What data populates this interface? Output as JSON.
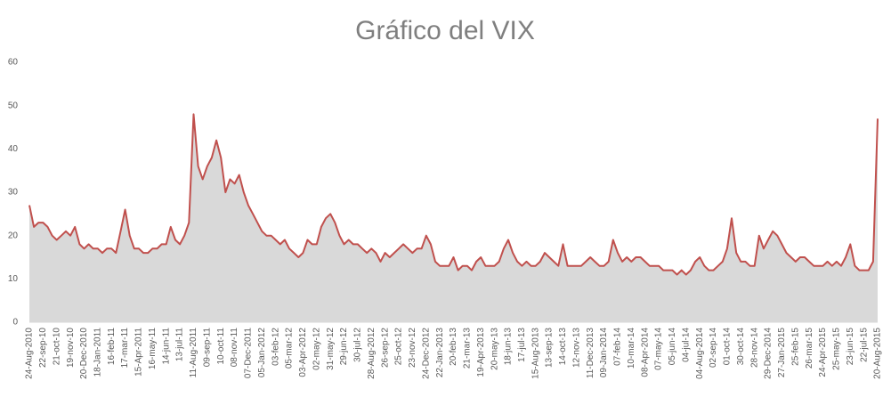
{
  "chart_data": {
    "type": "area_line",
    "title": "Gráfico del VIX",
    "categories": [
      "24-Aug-2010",
      null,
      null,
      "22-sep-10",
      null,
      null,
      "21-oct-10",
      null,
      null,
      "19-nov-10",
      null,
      null,
      "20-Dec-2010",
      null,
      null,
      "18-Jan-2011",
      null,
      null,
      "16-feb-11",
      null,
      null,
      "17-mar-11",
      null,
      null,
      "15-Apr-2011",
      null,
      null,
      "16-may-11",
      null,
      null,
      "14-jun-11",
      null,
      null,
      "13-jul-11",
      null,
      null,
      "11-Aug-2011",
      null,
      null,
      "09-sep-11",
      null,
      null,
      "10-oct-11",
      null,
      null,
      "08-nov-11",
      null,
      null,
      "07-Dec-2011",
      null,
      null,
      "05-Jan-2012",
      null,
      null,
      "03-feb-12",
      null,
      null,
      "05-mar-12",
      null,
      null,
      "03-Apr-2012",
      null,
      null,
      "02-may-12",
      null,
      null,
      "31-may-12",
      null,
      null,
      "29-jun-12",
      null,
      null,
      "30-jul-12",
      null,
      null,
      "28-Aug-2012",
      null,
      null,
      "26-sep-12",
      null,
      null,
      "25-oct-12",
      null,
      null,
      "23-nov-12",
      null,
      null,
      "24-Dec-2012",
      null,
      null,
      "22-Jan-2013",
      null,
      null,
      "20-feb-13",
      null,
      null,
      "21-mar-13",
      null,
      null,
      "19-Apr-2013",
      null,
      null,
      "20-may-13",
      null,
      null,
      "18-jun-13",
      null,
      null,
      "17-jul-13",
      null,
      null,
      "15-Aug-2013",
      null,
      null,
      "13-sep-13",
      null,
      null,
      "14-oct-13",
      null,
      null,
      "12-nov-13",
      null,
      null,
      "11-Dec-2013",
      null,
      null,
      "09-Jan-2014",
      null,
      null,
      "07-feb-14",
      null,
      null,
      "10-mar-14",
      null,
      null,
      "08-Apr-2014",
      null,
      null,
      "07-may-14",
      null,
      null,
      "05-jun-14",
      null,
      null,
      "04-jul-14",
      null,
      null,
      "04-Aug-2014",
      null,
      null,
      "02-sep-14",
      null,
      null,
      "01-oct-14",
      null,
      null,
      "30-oct-14",
      null,
      null,
      "28-nov-14",
      null,
      null,
      "29-Dec-2014",
      null,
      null,
      "27-Jan-2015",
      null,
      null,
      "25-feb-15",
      null,
      null,
      "26-mar-15",
      null,
      null,
      "24-Apr-2015",
      null,
      null,
      "25-may-15",
      null,
      null,
      "23-jun-15",
      null,
      null,
      "22-jul-15",
      null,
      null,
      "20-Aug-2015"
    ],
    "series": [
      {
        "name": "VIX",
        "color": "#c0504d",
        "fill": "#d9d9d9",
        "values": [
          27,
          22,
          23,
          23,
          22,
          20,
          19,
          20,
          21,
          20,
          22,
          18,
          17,
          18,
          17,
          17,
          16,
          17,
          17,
          16,
          21,
          26,
          20,
          17,
          17,
          16,
          16,
          17,
          17,
          18,
          18,
          22,
          19,
          18,
          20,
          23,
          48,
          36,
          33,
          36,
          38,
          42,
          38,
          30,
          33,
          32,
          34,
          30,
          27,
          25,
          23,
          21,
          20,
          20,
          19,
          18,
          19,
          17,
          16,
          15,
          16,
          19,
          18,
          18,
          22,
          24,
          25,
          23,
          20,
          18,
          19,
          18,
          18,
          17,
          16,
          17,
          16,
          14,
          16,
          15,
          16,
          17,
          18,
          17,
          16,
          17,
          17,
          20,
          18,
          14,
          13,
          13,
          13,
          15,
          12,
          13,
          13,
          12,
          14,
          15,
          13,
          13,
          13,
          14,
          17,
          19,
          16,
          14,
          13,
          14,
          13,
          13,
          14,
          16,
          15,
          14,
          13,
          18,
          13,
          13,
          13,
          13,
          14,
          15,
          14,
          13,
          13,
          14,
          19,
          16,
          14,
          15,
          14,
          15,
          15,
          14,
          13,
          13,
          13,
          12,
          12,
          12,
          11,
          12,
          11,
          12,
          14,
          15,
          13,
          12,
          12,
          13,
          14,
          17,
          24,
          16,
          14,
          14,
          13,
          13,
          20,
          17,
          19,
          21,
          20,
          18,
          16,
          15,
          14,
          15,
          15,
          14,
          13,
          13,
          13,
          14,
          13,
          14,
          13,
          15,
          18,
          13,
          12,
          12,
          12,
          14,
          47
        ]
      }
    ],
    "ylim": [
      0,
      60
    ],
    "yticks": [
      0,
      10,
      20,
      30,
      40,
      50,
      60
    ]
  }
}
